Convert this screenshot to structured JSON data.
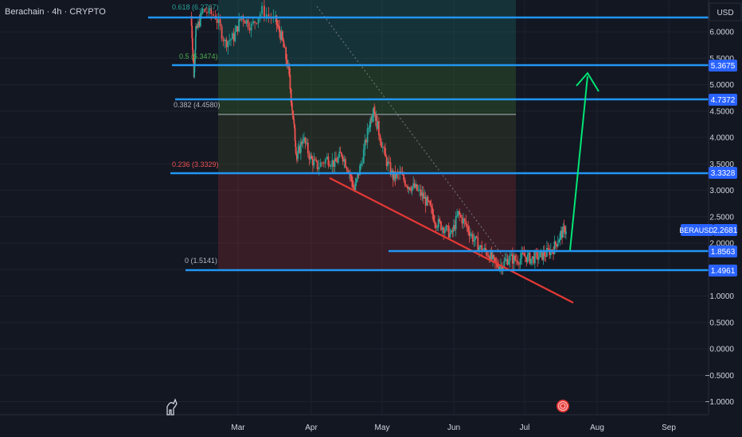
{
  "header": {
    "symbol_title": "Berachain · 4h · CRYPTO",
    "currency": "USD"
  },
  "chart_data": {
    "type": "line",
    "title": "Berachain · 4h · CRYPTO",
    "xlabel": "",
    "ylabel": "USD",
    "x_ticks": [
      "Mar",
      "Apr",
      "May",
      "Jun",
      "Jul",
      "Aug",
      "Sep"
    ],
    "y_ticks": [
      "6.0000",
      "5.5000",
      "5.0000",
      "4.5000",
      "4.0000",
      "3.5000",
      "3.0000",
      "2.5000",
      "2.0000",
      "1.5000",
      "1.0000",
      "0.5000",
      "0.0000",
      "−0.5000",
      "−1.0000"
    ],
    "ylim": [
      -1.3,
      6.6
    ],
    "series": [
      {
        "name": "BERAUSD",
        "last_value": "2.2681",
        "points": [
          [
            0,
            6.3
          ],
          [
            0.3,
            5.2
          ],
          [
            0.5,
            6.0
          ],
          [
            1.2,
            6.4
          ],
          [
            2.5,
            6.3
          ],
          [
            3.5,
            5.8
          ],
          [
            4.4,
            5.9
          ],
          [
            5.2,
            6.3
          ],
          [
            6.2,
            6.1
          ],
          [
            7.3,
            6.4
          ],
          [
            8.7,
            6.2
          ],
          [
            9.3,
            5.9
          ],
          [
            10.0,
            5.3
          ],
          [
            10.6,
            4.2
          ],
          [
            10.9,
            3.6
          ],
          [
            11.5,
            4.0
          ],
          [
            12.3,
            3.6
          ],
          [
            13.0,
            3.45
          ],
          [
            14.0,
            3.6
          ],
          [
            14.8,
            3.5
          ],
          [
            15.5,
            3.7
          ],
          [
            16.3,
            3.35
          ],
          [
            16.8,
            3.0
          ],
          [
            17.5,
            3.5
          ],
          [
            18.3,
            4.2
          ],
          [
            18.8,
            4.6
          ],
          [
            19.2,
            4.2
          ],
          [
            20.0,
            3.6
          ],
          [
            20.8,
            3.25
          ],
          [
            21.5,
            3.3
          ],
          [
            22.3,
            3.1
          ],
          [
            23.0,
            3.05
          ],
          [
            23.8,
            2.9
          ],
          [
            24.5,
            2.7
          ],
          [
            25.2,
            2.4
          ],
          [
            26.0,
            2.3
          ],
          [
            26.8,
            2.15
          ],
          [
            27.5,
            2.55
          ],
          [
            28.3,
            2.35
          ],
          [
            29.0,
            2.1
          ],
          [
            29.8,
            1.9
          ],
          [
            30.6,
            1.8
          ],
          [
            31.3,
            1.6
          ],
          [
            32.0,
            1.58
          ],
          [
            32.7,
            1.72
          ],
          [
            33.5,
            1.68
          ],
          [
            34.3,
            1.75
          ],
          [
            35.0,
            1.7
          ],
          [
            35.8,
            1.75
          ],
          [
            36.5,
            1.8
          ],
          [
            37.3,
            1.9
          ],
          [
            38.0,
            2.15
          ],
          [
            38.6,
            2.27
          ]
        ]
      }
    ],
    "fib_levels": [
      {
        "label": "0.618 (6.2767)",
        "color": "#26a69a"
      },
      {
        "label": "0.5 (5.3474)",
        "color": "#4caf50"
      },
      {
        "label": "0.382 (4.4580)",
        "color": "#b2b5be"
      },
      {
        "label": "0.236 (3.3329)",
        "color": "#ef5350"
      },
      {
        "label": "0 (1.5141)",
        "color": "#b2b5be"
      }
    ],
    "horizontal_levels": [
      "4.7372",
      "1.8563",
      "5.3675",
      "3.3328",
      "1.4961"
    ],
    "annotations": [
      "green arrow pointing up toward 5.3675",
      "red descending trendline",
      "dotted descending trendline"
    ],
    "grid": true,
    "colors": {
      "background": "#131722",
      "level_line": "#2196f3",
      "price_label": "#2962ff",
      "trendline": "#e53935",
      "arrow": "#00e676",
      "candle_up": "#26a69a",
      "candle_down": "#ef5350"
    }
  }
}
